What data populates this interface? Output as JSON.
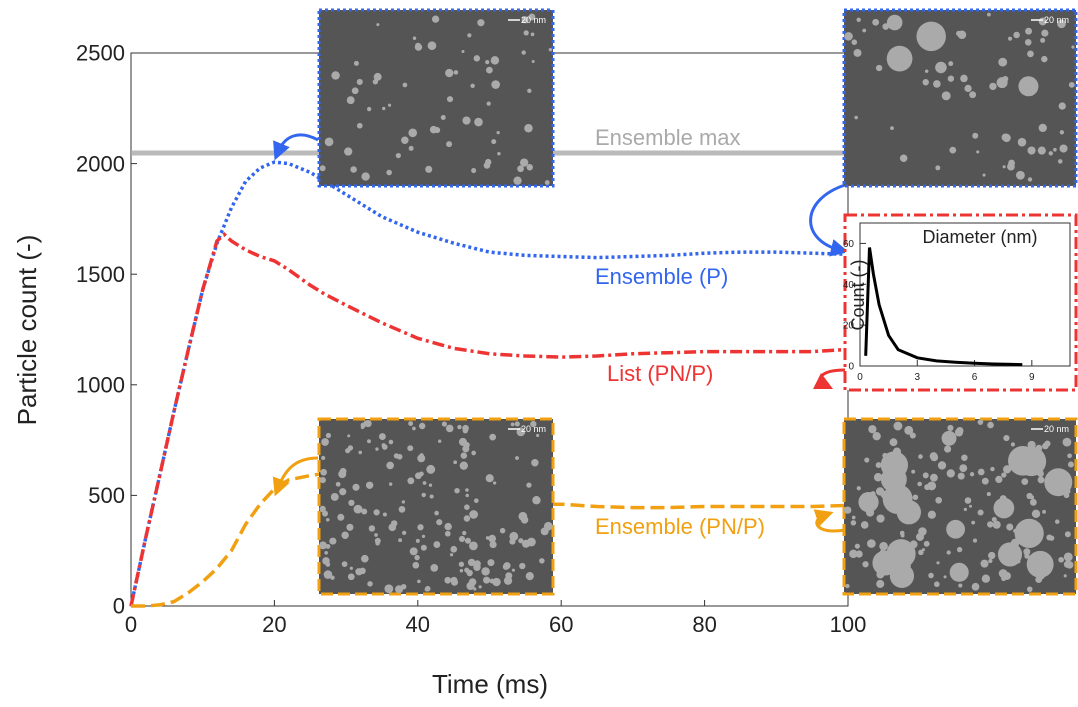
{
  "chart_data": [
    {
      "type": "line",
      "xlabel": "Time (ms)",
      "ylabel": "Particle count (-)",
      "x": [
        0,
        2,
        4,
        6,
        8,
        10,
        12,
        13,
        14,
        16,
        18,
        20,
        22,
        25,
        27,
        30,
        35,
        40,
        45,
        50,
        55,
        60,
        65,
        70,
        75,
        80,
        85,
        90,
        95,
        100
      ],
      "series": [
        {
          "name": "Ensemble (P)",
          "color": "#3366ee",
          "dash": "dotted",
          "values": [
            0,
            300,
            590,
            880,
            1160,
            1430,
            1640,
            1720,
            1800,
            1920,
            1980,
            2007,
            2000,
            1960,
            1920,
            1860,
            1760,
            1690,
            1640,
            1600,
            1585,
            1580,
            1575,
            1580,
            1585,
            1595,
            1600,
            1600,
            1595,
            1590
          ]
        },
        {
          "name": "List (PN/P)",
          "color": "#ee3333",
          "dash": "dashdot",
          "values": [
            0,
            300,
            590,
            880,
            1160,
            1430,
            1650,
            1680,
            1650,
            1610,
            1580,
            1560,
            1520,
            1450,
            1410,
            1360,
            1280,
            1210,
            1165,
            1140,
            1130,
            1125,
            1130,
            1140,
            1145,
            1150,
            1150,
            1150,
            1150,
            1160
          ]
        },
        {
          "name": "Ensemble (PN/P)",
          "color": "#f0a010",
          "dash": "dashed",
          "values": [
            0,
            0,
            5,
            20,
            60,
            110,
            170,
            210,
            250,
            370,
            460,
            530,
            570,
            590,
            600,
            560,
            510,
            480,
            465,
            460,
            460,
            460,
            450,
            445,
            445,
            450,
            450,
            450,
            450,
            455
          ]
        }
      ],
      "reference_lines": [
        {
          "name": "Ensemble max",
          "value": 2048,
          "color": "#aaaaaa"
        }
      ],
      "xlim": [
        0,
        100
      ],
      "xticks": [
        0,
        20,
        40,
        60,
        80,
        100
      ],
      "ylim": [
        0,
        2500
      ],
      "yticks": [
        0,
        500,
        1000,
        1500,
        2000,
        2500
      ],
      "insets": [
        {
          "scale_label": "20 nm",
          "border": "#3366ee"
        },
        {
          "scale_label": "20 nm",
          "border": "#3366ee"
        },
        {
          "scale_label": "20 nm",
          "border": "#f0a010"
        },
        {
          "scale_label": "20 nm",
          "border": "#f0a010"
        }
      ]
    },
    {
      "type": "line",
      "title": "Diameter (nm)",
      "ylabel": "Count (-)",
      "x": [
        0.3,
        0.5,
        0.7,
        1,
        1.5,
        2,
        3,
        4,
        5,
        6,
        7,
        8,
        8.5
      ],
      "series": [
        {
          "name": null,
          "color": "#000000",
          "dash": "solid",
          "values": [
            5,
            58,
            45,
            30,
            15,
            8,
            4,
            2.5,
            1.8,
            1.3,
            1,
            0.8,
            0.7
          ]
        }
      ],
      "xlim": [
        0,
        11
      ],
      "xticks": [
        0,
        3,
        6,
        9
      ],
      "ylim": [
        0,
        70
      ],
      "yticks": [
        0,
        20,
        40,
        60
      ]
    }
  ]
}
